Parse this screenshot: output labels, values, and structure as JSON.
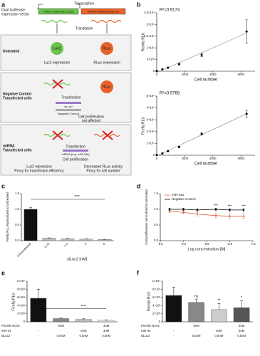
{
  "panels": [
    "a",
    "b",
    "c",
    "d",
    "e",
    "f"
  ],
  "diagram": {
    "vector_label": [
      "Dual luciferase",
      "expression vector"
    ],
    "firefly": "Firefly Luciferase (Luc2)",
    "renilla": "Renilla luciferase (RLuc)",
    "transcription": "Transcription",
    "translation": "Translation",
    "untreated": {
      "label": "Untreated",
      "luc2": "Luc2",
      "rluc": "RLuc",
      "luc2_text": "Luc2 expression",
      "rluc_text": "RLuc expression"
    },
    "negative_control": {
      "label": [
        "Negative Control",
        "Transfected cells"
      ],
      "rluc": "RLuc",
      "transfection": "Transfection",
      "siluc2": "siLuc2",
      "control": "Negative Control",
      "outcome": [
        "Cell proliferation",
        "not affected"
      ]
    },
    "mirna": {
      "label": [
        "miRNA",
        "Transfected cells"
      ],
      "transfection": "Transfection",
      "mirna": "miRNA (e.g. miR-34a)",
      "outcome": "Cell proliferation",
      "luc2_text": [
        "Luc2 repression",
        "Proxy for transfection efficiency"
      ],
      "rluc_text": [
        "Decreased RLuc activity",
        "Proxy for cell number"
      ]
    }
  },
  "chart_data": [
    {
      "type": "scatter",
      "annotation": "R²=0.9174",
      "xlabel": "Cell number",
      "ylabel": "Renilla RLU",
      "color": "#000",
      "x": [
        0,
        400,
        800,
        1600,
        3200,
        6400
      ],
      "values": [
        100,
        800,
        1500,
        3000,
        7000,
        17000
      ],
      "errors": [
        50,
        200,
        300,
        400,
        800,
        5000
      ],
      "xlim": [
        0,
        7000
      ],
      "xticks": [
        0,
        2000,
        4000,
        6000
      ],
      "ylim": [
        0,
        25000
      ],
      "yticks": [
        0,
        {
          "value": 5000,
          "label": "5×10³"
        },
        {
          "value": 10000,
          "label": "1×10⁴"
        },
        {
          "value": 15000,
          "label": "1.5×10⁴"
        },
        {
          "value": 20000,
          "label": "2×10⁴"
        },
        {
          "value": 25000,
          "label": "2.5×10⁴"
        }
      ]
    },
    {
      "type": "scatter",
      "annotation": "R²=0.9768",
      "xlabel": "Cell number",
      "ylabel": "Firefly RLU",
      "color": "#000",
      "x": [
        0,
        400,
        800,
        1600,
        3200,
        6400
      ],
      "values": [
        200,
        1500,
        3500,
        7000,
        18000,
        35000
      ],
      "errors": [
        100,
        300,
        400,
        600,
        1000,
        3000
      ],
      "xlim": [
        0,
        7000
      ],
      "xticks": [
        0,
        2000,
        4000,
        6000
      ],
      "ylim": [
        0,
        50000
      ],
      "yticks": [
        0,
        {
          "value": 10000,
          "label": "1×10⁴"
        },
        {
          "value": 20000,
          "label": "2×10⁴"
        },
        {
          "value": 30000,
          "label": "3×10⁴"
        },
        {
          "value": 40000,
          "label": "4×10⁴"
        },
        {
          "value": 50000,
          "label": "5×10⁴"
        }
      ]
    },
    {
      "type": "bar",
      "ylabel": "Firefly RLU Normalized to Untreated",
      "xlabel": "siLuc2 [nM]",
      "comparison": "****",
      "categories": [
        "Untransfected",
        "0.75",
        "1.5",
        "3",
        "6"
      ],
      "values": [
        1.0,
        0.08,
        0.06,
        0.05,
        0.04
      ],
      "errors": [
        0.05,
        0.01,
        0.01,
        0.005,
        0.005
      ],
      "colors": [
        "#111111",
        "#bbbbbb",
        "#bbbbbb",
        "#bbbbbb",
        "#bbbbbb"
      ],
      "ylim": [
        0,
        1.5
      ],
      "yticks": [
        {
          "value": 0,
          "label": "0.0"
        },
        {
          "value": 0.5,
          "label": "0.5"
        },
        {
          "value": 1,
          "label": "1.0"
        },
        {
          "value": 1.5,
          "label": "1.5"
        }
      ]
    },
    {
      "type": "line",
      "ylabel": "Cell proliferation normalized to untreated",
      "xlabel": "Log concentration [M]",
      "x": [
        -9.3,
        -9.0,
        -8.7,
        -8.3,
        -8.0,
        -7.7
      ],
      "significance": [
        null,
        null,
        null,
        "***",
        "***",
        "***"
      ],
      "series": [
        {
          "name": "miR-34a",
          "color": "#d9603b",
          "values": [
            0.95,
            0.9,
            0.85,
            0.8,
            0.78,
            0.78
          ],
          "errors": [
            0.05,
            0.05,
            0.06,
            0.07,
            0.08,
            0.08
          ]
        },
        {
          "name": "Negative Control",
          "color": "#000000",
          "values": [
            1.0,
            1.0,
            0.98,
            1.0,
            0.98,
            0.98
          ],
          "errors": [
            0.04,
            0.04,
            0.04,
            0.04,
            0.04,
            0.04
          ]
        }
      ],
      "xlim": [
        -9.5,
        -7.5
      ],
      "xticks": [
        {
          "value": -9.5,
          "label": "-9.5"
        },
        {
          "value": -9,
          "label": "-9.0"
        },
        {
          "value": -8.5,
          "label": "-8.5"
        },
        {
          "value": -8,
          "label": "-8.0"
        },
        {
          "value": -7.5,
          "label": "-7.5"
        }
      ],
      "ylim": [
        0,
        1.5
      ],
      "yticks": [
        {
          "value": 0,
          "label": "0.0"
        },
        {
          "value": 0.5,
          "label": "0.5"
        },
        {
          "value": 1,
          "label": "1.0"
        },
        {
          "value": 1.5,
          "label": "1.5"
        }
      ]
    },
    {
      "type": "bar",
      "ylabel": "Firefly RLU",
      "comparison": "****",
      "values": [
        5800,
        800,
        600,
        400
      ],
      "errors": [
        2200,
        200,
        150,
        100
      ],
      "colors": [
        "#111111",
        "#888888",
        "#bbbbbb",
        "#dddddd"
      ],
      "conditions": [
        {
          "name": "PremiR NC#2",
          "values": [
            "-",
            "6nM",
            "-",
            "3nM"
          ]
        },
        {
          "name": "miR-34",
          "values": [
            "-",
            "-",
            "6nM",
            "3nM"
          ]
        },
        {
          "name": "siLuc2",
          "values": [
            "-",
            "0.5nM",
            "0.5nM",
            "0.5nM"
          ]
        }
      ],
      "ylim": [
        0,
        10000
      ],
      "yticks": [
        0,
        {
          "value": 2000,
          "label": "2×10³"
        },
        {
          "value": 4000,
          "label": "4×10³"
        },
        {
          "value": 6000,
          "label": "6×10³"
        },
        {
          "value": 8000,
          "label": "8×10³"
        },
        {
          "value": 10000,
          "label": "1×10⁴"
        }
      ]
    },
    {
      "type": "bar",
      "ylabel": "Renilla RLU",
      "significance": [
        null,
        "ns",
        "**",
        "*"
      ],
      "values": [
        6500,
        4800,
        3000,
        3500
      ],
      "errors": [
        2000,
        800,
        1500,
        1700
      ],
      "colors": [
        "#111111",
        "#888888",
        "#cccccc",
        "#555555"
      ],
      "conditions": [
        {
          "name": "PremiR NC#2",
          "values": [
            "-",
            "6nM",
            "-",
            "3nM"
          ]
        },
        {
          "name": "miR-34",
          "values": [
            "-",
            "-",
            "6nM",
            "3nM"
          ]
        },
        {
          "name": "siLuc2",
          "values": [
            "-",
            "0.5nM",
            "0.5nM",
            "0.5nM"
          ]
        }
      ],
      "ylim": [
        0,
        10000
      ],
      "yticks": [
        0,
        {
          "value": 2000,
          "label": "2×10³"
        },
        {
          "value": 4000,
          "label": "4×10³"
        },
        {
          "value": 6000,
          "label": "6×10³"
        },
        {
          "value": 8000,
          "label": "8×10³"
        },
        {
          "value": 10000,
          "label": "1×10⁴"
        }
      ]
    }
  ]
}
